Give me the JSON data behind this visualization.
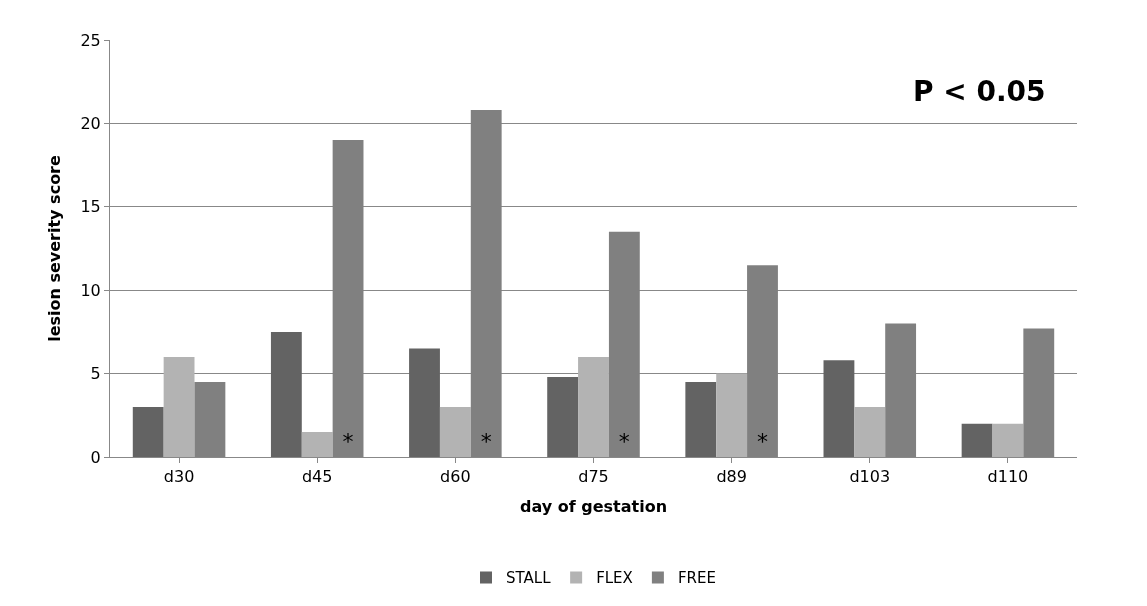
{
  "chart_data": {
    "type": "bar",
    "xlabel": "day of gestation",
    "ylabel": "lesion severity score",
    "categories": [
      "d30",
      "d45",
      "d60",
      "d75",
      "d89",
      "d103",
      "d110"
    ],
    "series": [
      {
        "name": "STALL",
        "color": "#636363",
        "values": [
          3,
          7.5,
          6.5,
          4.8,
          4.5,
          5.8,
          2
        ]
      },
      {
        "name": "FLEX",
        "color": "#b3b3b3",
        "values": [
          6,
          1.5,
          3,
          6,
          5,
          3,
          2
        ]
      },
      {
        "name": "FREE",
        "color": "#808080",
        "values": [
          4.5,
          19,
          20.8,
          13.5,
          11.5,
          8,
          7.7
        ],
        "value_labels": [
          null,
          "*",
          "*",
          "*",
          "*",
          null,
          null
        ]
      }
    ],
    "ylim": [
      0,
      25
    ],
    "yticks": [
      0,
      5,
      10,
      15,
      20,
      25
    ],
    "grid": "y",
    "legend": "bottom",
    "annotations": [
      "P < 0.05"
    ]
  }
}
